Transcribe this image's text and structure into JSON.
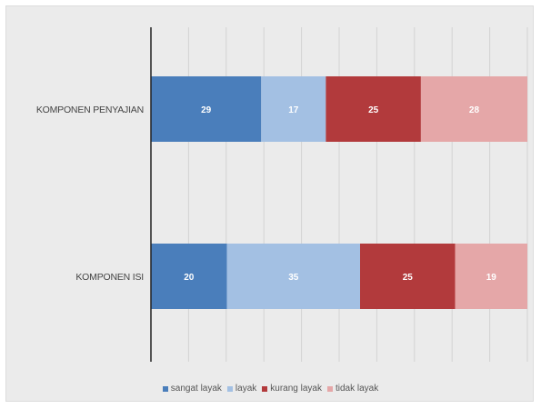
{
  "chart_data": {
    "type": "bar",
    "orientation": "horizontal",
    "stacked": true,
    "categories": [
      "KOMPONEN PENYAJIAN",
      "KOMPONEN ISI"
    ],
    "series": [
      {
        "name": "sangat layak",
        "color": "#4a7ebb",
        "values": [
          29,
          20
        ]
      },
      {
        "name": "layak",
        "color": "#a3c0e3",
        "values": [
          17,
          35
        ]
      },
      {
        "name": "kurang layak",
        "color": "#b23a3c",
        "values": [
          25,
          25
        ]
      },
      {
        "name": "tidak layak",
        "color": "#e5a7a8",
        "values": [
          28,
          19
        ]
      }
    ],
    "xlim": [
      0,
      100
    ],
    "grid": true,
    "legend_position": "bottom"
  }
}
